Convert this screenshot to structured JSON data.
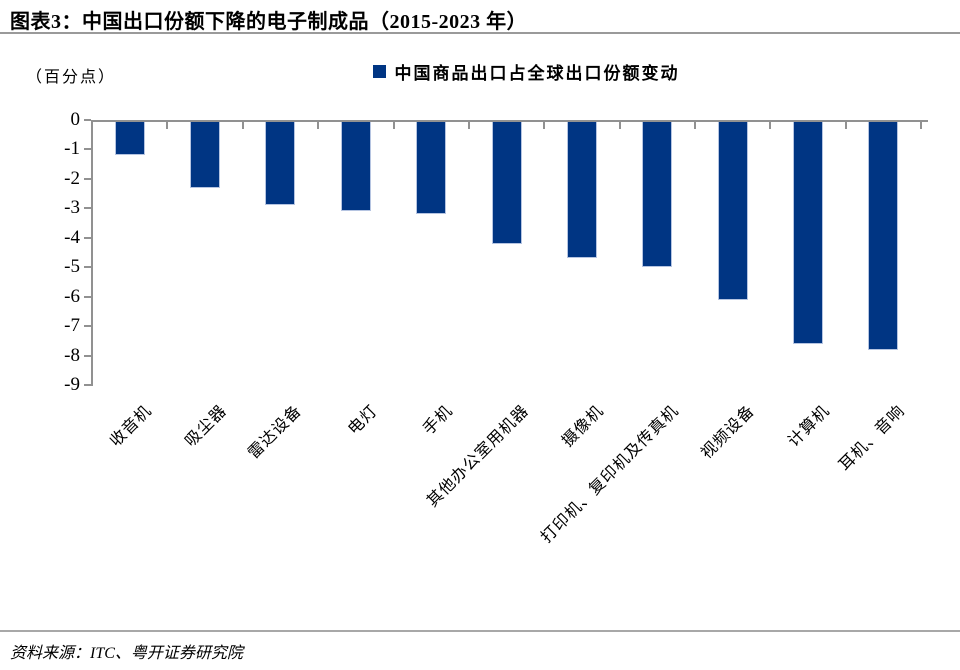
{
  "page": {
    "title": "图表3：中国出口份额下降的电子制成品（2015-2023 年）",
    "source": "资料来源：ITC、粤开证券研究院"
  },
  "chart_data": {
    "type": "bar",
    "title": "图表3：中国出口份额下降的电子制成品（2015-2023 年）",
    "legend": [
      "中国商品出口占全球出口份额变动"
    ],
    "legend_position": "top",
    "unit_label": "（百分点）",
    "categories": [
      "收音机",
      "吸尘器",
      "雷达设备",
      "电灯",
      "手机",
      "其他办公室用机器",
      "摄像机",
      "打印机、复印机及传真机",
      "视频设备",
      "计算机",
      "耳机、音响"
    ],
    "values": [
      -1.2,
      -2.3,
      -2.9,
      -3.1,
      -3.2,
      -4.2,
      -4.7,
      -5.0,
      -6.1,
      -7.6,
      -7.8
    ],
    "ylim": [
      -9,
      0
    ],
    "ytick_step": 1,
    "ytick_labels": [
      "0",
      "-1",
      "-2",
      "-3",
      "-4",
      "-5",
      "-6",
      "-7",
      "-8",
      "-9"
    ],
    "grid": false,
    "bar_color": "#003583",
    "bar_border_color": "#b5c4e1",
    "axis_color": "#919191",
    "source": "资料来源：ITC、粤开证券研究院"
  }
}
